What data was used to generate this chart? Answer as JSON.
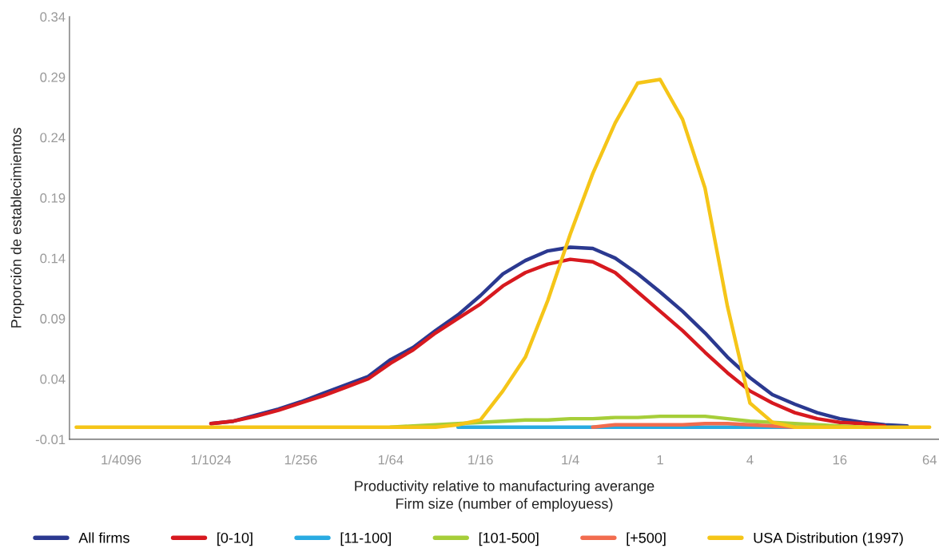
{
  "chart_data": {
    "type": "line",
    "xlabel": "Productivity relative to manufacturing averange\nFirm size (number of employuess)",
    "ylabel": "Proporción de establecimientos",
    "log": "x",
    "x": [
      0.0001221,
      0.0001726,
      0.0002441,
      0.0003453,
      0.0004883,
      0.0006905,
      0.0009766,
      0.001381,
      0.001953,
      0.002762,
      0.003906,
      0.005524,
      0.007813,
      0.01105,
      0.01563,
      0.0221,
      0.03125,
      0.04419,
      0.0625,
      0.08839,
      0.125,
      0.1768,
      0.25,
      0.3536,
      0.5,
      0.7071,
      1,
      1.414,
      2,
      2.828,
      4,
      5.657,
      8,
      11.31,
      16,
      22.63,
      32,
      45.25,
      64
    ],
    "series": [
      {
        "name": "All firms",
        "color": "#2b3990",
        "values": [
          null,
          null,
          null,
          null,
          null,
          null,
          0.003,
          0.005,
          0.01,
          0.015,
          0.021,
          0.028,
          0.035,
          0.042,
          0.056,
          0.066,
          0.08,
          0.093,
          0.109,
          0.127,
          0.138,
          0.146,
          0.149,
          0.148,
          0.14,
          0.127,
          0.112,
          0.096,
          0.078,
          0.058,
          0.041,
          0.027,
          0.019,
          0.012,
          0.007,
          0.004,
          0.002,
          0.001,
          null
        ]
      },
      {
        "name": "[0-10]",
        "color": "#d7191f",
        "values": [
          null,
          null,
          null,
          null,
          null,
          null,
          0.003,
          0.005,
          0.009,
          0.014,
          0.02,
          0.026,
          0.033,
          0.04,
          0.053,
          0.064,
          0.078,
          0.09,
          0.102,
          0.117,
          0.128,
          0.135,
          0.139,
          0.137,
          0.128,
          0.112,
          0.096,
          0.08,
          0.062,
          0.045,
          0.03,
          0.02,
          0.012,
          0.007,
          0.004,
          0.003,
          0.001,
          null,
          null
        ]
      },
      {
        "name": "[11-100]",
        "color": "#29abe2",
        "values": [
          null,
          null,
          null,
          null,
          null,
          null,
          null,
          null,
          null,
          null,
          null,
          null,
          null,
          null,
          null,
          null,
          null,
          0,
          0,
          0,
          0,
          0,
          0,
          0,
          0,
          0,
          0,
          0,
          0,
          0,
          0,
          0,
          0,
          0,
          null,
          null,
          null,
          null,
          null
        ]
      },
      {
        "name": "[101-500]",
        "color": "#a6ce39",
        "values": [
          null,
          null,
          null,
          null,
          null,
          null,
          null,
          null,
          null,
          null,
          null,
          null,
          null,
          null,
          0,
          0.001,
          0.002,
          0.003,
          0.004,
          0.005,
          0.006,
          0.006,
          0.007,
          0.007,
          0.008,
          0.008,
          0.009,
          0.009,
          0.009,
          0.007,
          0.005,
          0.004,
          0.003,
          0.002,
          0.001,
          0,
          null,
          null,
          null
        ]
      },
      {
        "name": "[+500]",
        "color": "#f26c4f",
        "values": [
          null,
          null,
          null,
          null,
          null,
          null,
          null,
          null,
          null,
          null,
          null,
          null,
          null,
          null,
          null,
          null,
          null,
          null,
          null,
          null,
          null,
          null,
          null,
          0,
          0.002,
          0.002,
          0.002,
          0.002,
          0.003,
          0.003,
          0.002,
          0.001,
          0,
          null,
          null,
          null,
          null,
          null,
          null
        ]
      },
      {
        "name": "USA Distribution (1997)",
        "color": "#f5c518",
        "values": [
          0,
          0,
          0,
          0,
          0,
          0,
          0,
          0,
          0,
          0,
          0,
          0,
          0,
          0,
          0,
          0,
          0,
          0.002,
          0.006,
          0.03,
          0.058,
          0.105,
          0.16,
          0.21,
          0.252,
          0.285,
          0.288,
          0.255,
          0.198,
          0.1,
          0.02,
          0.004,
          0,
          0,
          0,
          0,
          0,
          0,
          0
        ]
      }
    ],
    "xlim": [
      0.00011,
      74
    ],
    "xticks": [
      {
        "value": 0.0002441,
        "label": "1/4096"
      },
      {
        "value": 0.0009766,
        "label": "1/1024"
      },
      {
        "value": 0.003906,
        "label": "1/256"
      },
      {
        "value": 0.01563,
        "label": "1/64"
      },
      {
        "value": 0.0625,
        "label": "1/16"
      },
      {
        "value": 0.25,
        "label": "1/4"
      },
      1,
      4,
      16,
      64
    ],
    "ylim": [
      -0.01,
      0.34
    ],
    "yticks": [
      -0.01,
      0.04,
      0.09,
      0.14,
      0.19,
      0.24,
      0.29,
      0.34
    ],
    "grid": false,
    "legend": "bottom",
    "line_style": "solid"
  }
}
